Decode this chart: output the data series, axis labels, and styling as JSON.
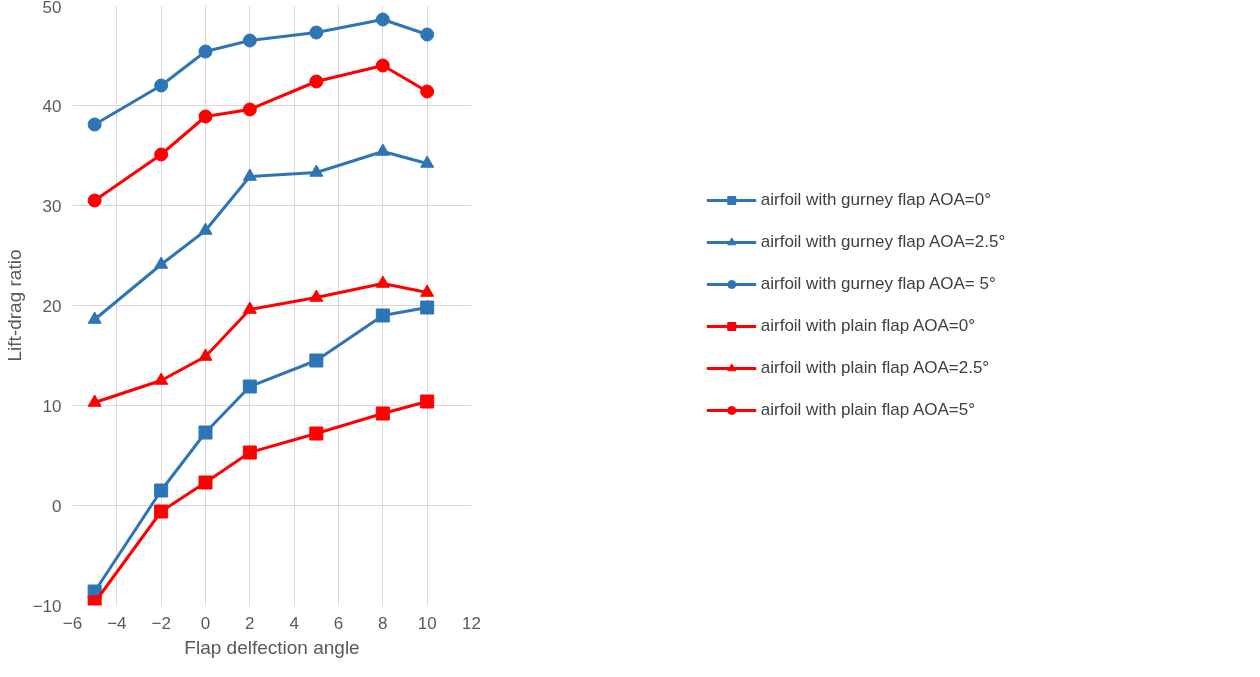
{
  "chart_data": {
    "type": "line",
    "xlabel": "Flap delfection angle",
    "ylabel": "Lift-drag ratio",
    "x": [
      -5,
      -2,
      0,
      2,
      5,
      8,
      10
    ],
    "xlim": [
      -6,
      12
    ],
    "xticks": [
      -6,
      -4,
      -2,
      0,
      2,
      4,
      6,
      8,
      10,
      12
    ],
    "ylim": [
      -10,
      50
    ],
    "yticks": [
      -10,
      0,
      10,
      20,
      30,
      40,
      50
    ],
    "grid": true,
    "legend": "right",
    "line_style": "solid",
    "series": [
      {
        "name": "airfoil with gurney flap AOA=0°",
        "color": "#2e75b6",
        "marker": "square",
        "values": [
          -8.6,
          1.5,
          7.3,
          11.9,
          14.5,
          19.0,
          19.8
        ]
      },
      {
        "name": "airfoil with gurney flap AOA=2.5°",
        "color": "#2e75b6",
        "marker": "triangle",
        "values": [
          18.6,
          24.1,
          27.5,
          32.9,
          33.3,
          35.4,
          34.2
        ]
      },
      {
        "name": "airfoil with gurney flap AOA= 5°",
        "color": "#2e75b6",
        "marker": "circle",
        "values": [
          38.1,
          42.0,
          45.4,
          46.5,
          47.3,
          48.6,
          47.1
        ]
      },
      {
        "name": "airfoil with plain flap AOA=0°",
        "color": "#ff0000",
        "marker": "square",
        "values": [
          -9.7,
          -0.6,
          2.3,
          5.3,
          7.2,
          9.2,
          10.4
        ]
      },
      {
        "name": "airfoil with plain flap AOA=2.5°",
        "color": "#ff0000",
        "marker": "triangle",
        "values": [
          10.3,
          12.5,
          14.9,
          19.6,
          20.8,
          22.2,
          21.3
        ]
      },
      {
        "name": "airfoil with plain flap AOA=5°",
        "color": "#ff0000",
        "marker": "circle",
        "values": [
          30.5,
          35.1,
          38.9,
          39.6,
          42.4,
          44.0,
          41.4
        ]
      }
    ]
  }
}
